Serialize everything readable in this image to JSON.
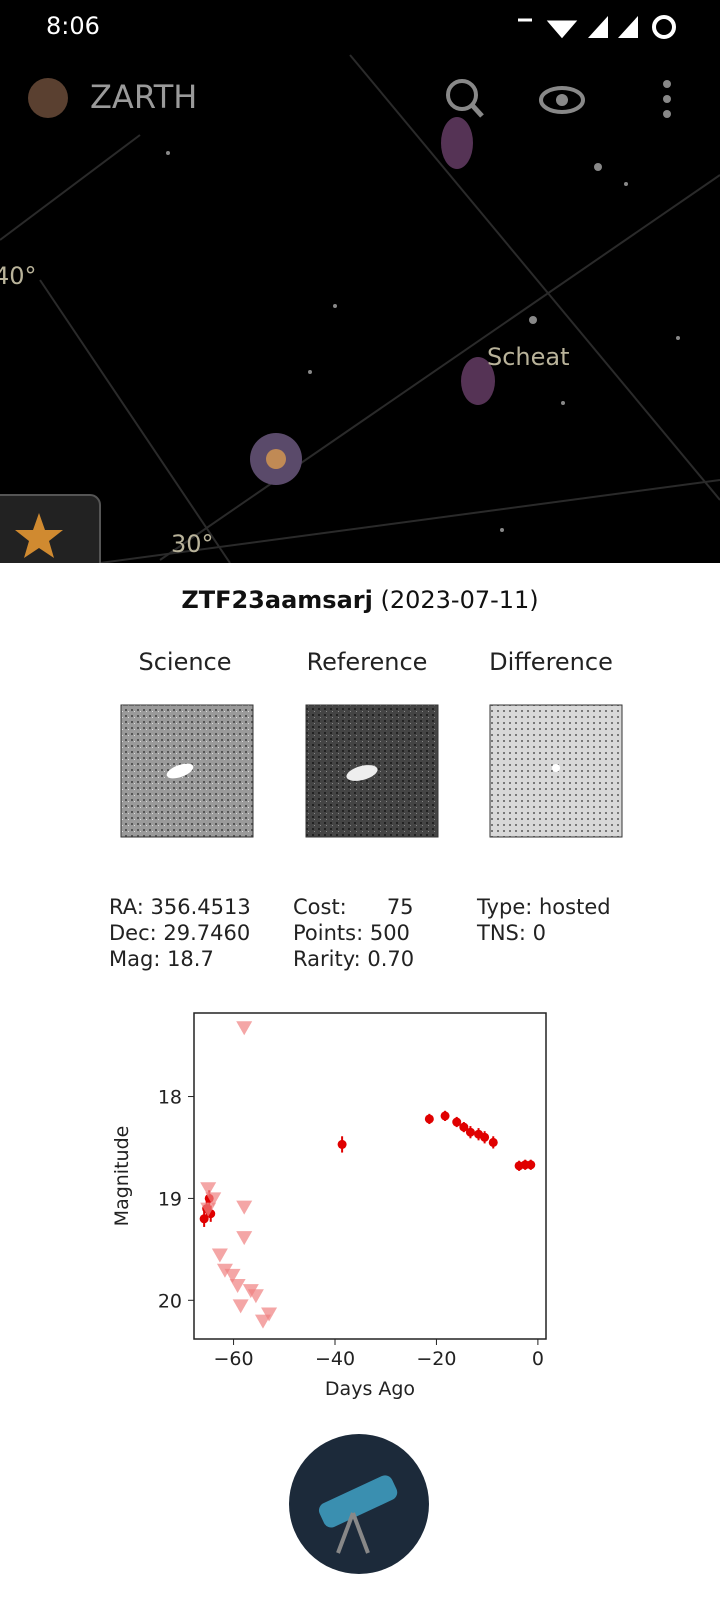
{
  "status_bar": {
    "time": "8:06"
  },
  "app_bar": {
    "title": "ZARTH"
  },
  "sky": {
    "labels": [
      "40°",
      "Scheat",
      "30°"
    ]
  },
  "object": {
    "name": "ZTF23aamsarj",
    "date": "(2023-07-11)"
  },
  "images": [
    "Science",
    "Reference",
    "Difference"
  ],
  "info": {
    "columns": [
      [
        "RA: 356.4513",
        "Dec: 29.7460",
        "Mag: 18.7"
      ],
      [
        "Cost:      75",
        "Points: 500",
        "Rarity: 0.70"
      ],
      [
        "Type: hosted",
        "TNS: 0"
      ]
    ]
  },
  "chart_data": {
    "type": "scatter",
    "xlabel": "Days Ago",
    "ylabel": "Magnitude",
    "xlim": [
      -67.8,
      1.6
    ],
    "ylim": [
      17.18,
      20.38
    ],
    "y_inverted": true,
    "xticks": [
      {
        "value": -60,
        "label": "−60"
      },
      {
        "value": -40,
        "label": "−40"
      },
      {
        "value": -20,
        "label": "−20"
      },
      0
    ],
    "yticks": [
      18,
      19,
      20
    ],
    "series": [
      {
        "color": "#e00000",
        "marker": "circle",
        "x": [
          -65.8,
          -65.3,
          -64.8,
          -64.5,
          -38.6,
          -21.4,
          -18.3,
          -16.0,
          -14.6,
          -13.3,
          -11.7,
          -10.5,
          -8.8,
          -3.7,
          -2.5,
          -1.4
        ],
        "values": [
          19.2,
          19.1,
          19.0,
          19.15,
          18.47,
          18.22,
          18.19,
          18.25,
          18.3,
          18.35,
          18.37,
          18.4,
          18.45,
          18.68,
          18.67,
          18.67
        ],
        "errors": [
          0.08,
          0.08,
          0.08,
          0.08,
          0.08,
          0.05,
          0.05,
          0.05,
          0.05,
          0.06,
          0.06,
          0.06,
          0.06,
          0.05,
          0.05,
          0.05
        ]
      },
      {
        "color": "#f08080",
        "marker": "triangle-down",
        "x": [
          -65.0,
          -65.0,
          -57.9,
          -57.9,
          -57.9,
          -62.7,
          -61.7,
          -60.2,
          -59.2,
          -58.6,
          -56.6,
          -55.6,
          -54.2,
          -53.0,
          -64.0
        ],
        "values": [
          18.9,
          19.1,
          17.32,
          19.08,
          19.38,
          19.55,
          19.7,
          19.75,
          19.85,
          20.05,
          19.9,
          19.95,
          20.2,
          20.13,
          19.0
        ]
      }
    ]
  }
}
